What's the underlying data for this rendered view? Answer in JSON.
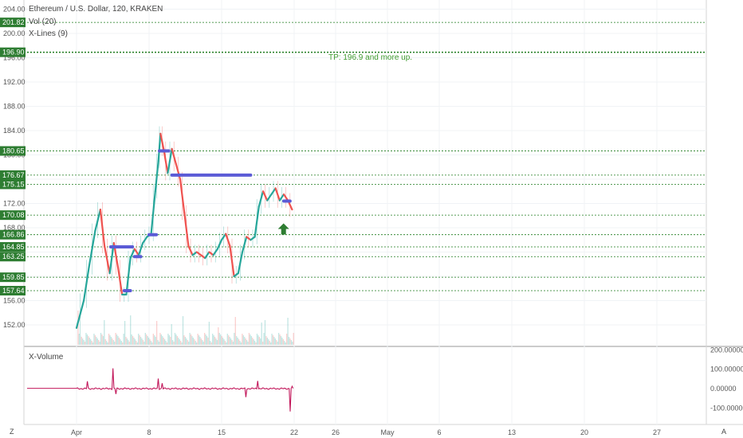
{
  "title": "Ethereum / U.S. Dollar, 120, KRAKEN",
  "indicators": [
    "Vol (20)",
    "X-Lines (9)"
  ],
  "subpane_label": "X-Volume",
  "annotation": "TP: 196.9 and more up.",
  "corner_left": "Z",
  "corner_right": "A",
  "colors": {
    "up": "#26a69a",
    "down": "#ef5350",
    "level_line": "#1e7b1e",
    "tag_bg": "#2e7d32",
    "annotation": "#3f9b2f",
    "xline_bar": "#5b5bd6",
    "xvolume_line": "#c2185b"
  },
  "chart_data": {
    "type": "line",
    "x_tick_labels": [
      "Apr",
      "8",
      "15",
      "22",
      "26",
      "May",
      "6",
      "13",
      "20",
      "27"
    ],
    "price_axis": {
      "ticks": [
        152.0,
        156.0,
        160.0,
        164.0,
        168.0,
        172.0,
        176.0,
        180.0,
        184.0,
        188.0,
        192.0,
        196.0,
        200.0,
        204.0
      ],
      "ylim": [
        148.6,
        205.8
      ]
    },
    "tick_labels_shown": [
      "204.00",
      "200.00",
      "196.00",
      "192.00",
      "188.00",
      "184.00",
      "180.00",
      "176.00",
      "172.00",
      "168.00",
      "156.00",
      "152.00"
    ],
    "levels": [
      {
        "value": 201.82,
        "label": "201.82"
      },
      {
        "value": 196.9,
        "label": "196.90"
      },
      {
        "value": 180.65,
        "label": "180.65"
      },
      {
        "value": 176.67,
        "label": "176.67"
      },
      {
        "value": 175.15,
        "label": "175.15"
      },
      {
        "value": 170.08,
        "label": "170.08"
      },
      {
        "value": 166.86,
        "label": "166.86"
      },
      {
        "value": 164.85,
        "label": "164.85"
      },
      {
        "value": 163.25,
        "label": "163.25"
      },
      {
        "value": 159.85,
        "label": "159.85"
      },
      {
        "value": 157.64,
        "label": "157.64"
      }
    ],
    "price_series": [
      {
        "t": 0.0,
        "p": 151.5
      },
      {
        "t": 0.7,
        "p": 156.0
      },
      {
        "t": 1.2,
        "p": 161.5
      },
      {
        "t": 1.8,
        "p": 167.5
      },
      {
        "t": 2.3,
        "p": 171.0
      },
      {
        "t": 2.7,
        "p": 165.0
      },
      {
        "t": 3.2,
        "p": 160.5
      },
      {
        "t": 3.6,
        "p": 165.5
      },
      {
        "t": 4.0,
        "p": 161.5
      },
      {
        "t": 4.4,
        "p": 157.0
      },
      {
        "t": 4.8,
        "p": 157.0
      },
      {
        "t": 5.2,
        "p": 163.0
      },
      {
        "t": 5.6,
        "p": 164.5
      },
      {
        "t": 6.0,
        "p": 163.5
      },
      {
        "t": 6.4,
        "p": 165.5
      },
      {
        "t": 6.8,
        "p": 166.5
      },
      {
        "t": 7.2,
        "p": 167.0
      },
      {
        "t": 7.6,
        "p": 174.0
      },
      {
        "t": 7.9,
        "p": 179.0
      },
      {
        "t": 8.1,
        "p": 183.5
      },
      {
        "t": 8.4,
        "p": 181.0
      },
      {
        "t": 8.8,
        "p": 177.0
      },
      {
        "t": 9.2,
        "p": 181.0
      },
      {
        "t": 9.6,
        "p": 178.5
      },
      {
        "t": 10.0,
        "p": 176.0
      },
      {
        "t": 10.4,
        "p": 170.5
      },
      {
        "t": 10.8,
        "p": 165.0
      },
      {
        "t": 11.2,
        "p": 163.5
      },
      {
        "t": 11.6,
        "p": 164.0
      },
      {
        "t": 12.0,
        "p": 163.5
      },
      {
        "t": 12.4,
        "p": 163.0
      },
      {
        "t": 12.8,
        "p": 164.0
      },
      {
        "t": 13.2,
        "p": 163.5
      },
      {
        "t": 13.6,
        "p": 164.5
      },
      {
        "t": 14.0,
        "p": 166.0
      },
      {
        "t": 14.4,
        "p": 167.0
      },
      {
        "t": 14.8,
        "p": 165.0
      },
      {
        "t": 15.2,
        "p": 160.0
      },
      {
        "t": 15.6,
        "p": 160.5
      },
      {
        "t": 16.0,
        "p": 164.0
      },
      {
        "t": 16.4,
        "p": 166.5
      },
      {
        "t": 16.8,
        "p": 166.0
      },
      {
        "t": 17.2,
        "p": 166.5
      },
      {
        "t": 17.6,
        "p": 171.5
      },
      {
        "t": 18.0,
        "p": 174.0
      },
      {
        "t": 18.4,
        "p": 172.5
      },
      {
        "t": 18.8,
        "p": 173.5
      },
      {
        "t": 19.2,
        "p": 174.5
      },
      {
        "t": 19.6,
        "p": 172.5
      },
      {
        "t": 20.0,
        "p": 173.5
      },
      {
        "t": 20.4,
        "p": 172.5
      },
      {
        "t": 20.8,
        "p": 171.0
      }
    ],
    "xline_bars": [
      {
        "t0": 3.3,
        "t1": 5.4,
        "p": 164.85
      },
      {
        "t0": 5.6,
        "t1": 6.2,
        "p": 163.25
      },
      {
        "t0": 4.6,
        "t1": 5.2,
        "p": 157.64
      },
      {
        "t0": 7.0,
        "t1": 7.7,
        "p": 166.86
      },
      {
        "t0": 8.0,
        "t1": 8.9,
        "p": 180.65
      },
      {
        "t0": 9.2,
        "t1": 16.8,
        "p": 176.67
      },
      {
        "t0": 20.0,
        "t1": 20.6,
        "p": 172.4
      }
    ],
    "volume_axis": {
      "ticks": [
        200,
        100,
        0,
        -100
      ],
      "tick_labels": [
        "200.00000",
        "100.00000",
        "0.00000",
        "-100.00000"
      ],
      "ylim": [
        -140,
        210
      ]
    },
    "xvolume_spikes": [
      {
        "t": 1.0,
        "v": 38
      },
      {
        "t": 3.5,
        "v": 105
      },
      {
        "t": 3.8,
        "v": -28
      },
      {
        "t": 7.9,
        "v": 52
      },
      {
        "t": 8.3,
        "v": 28
      },
      {
        "t": 16.3,
        "v": -44
      },
      {
        "t": 17.5,
        "v": 40
      },
      {
        "t": 20.6,
        "v": -118
      },
      {
        "t": 20.8,
        "v": 12
      }
    ],
    "buy_arrow": {
      "t": 20.9,
      "p": 167.8
    }
  }
}
